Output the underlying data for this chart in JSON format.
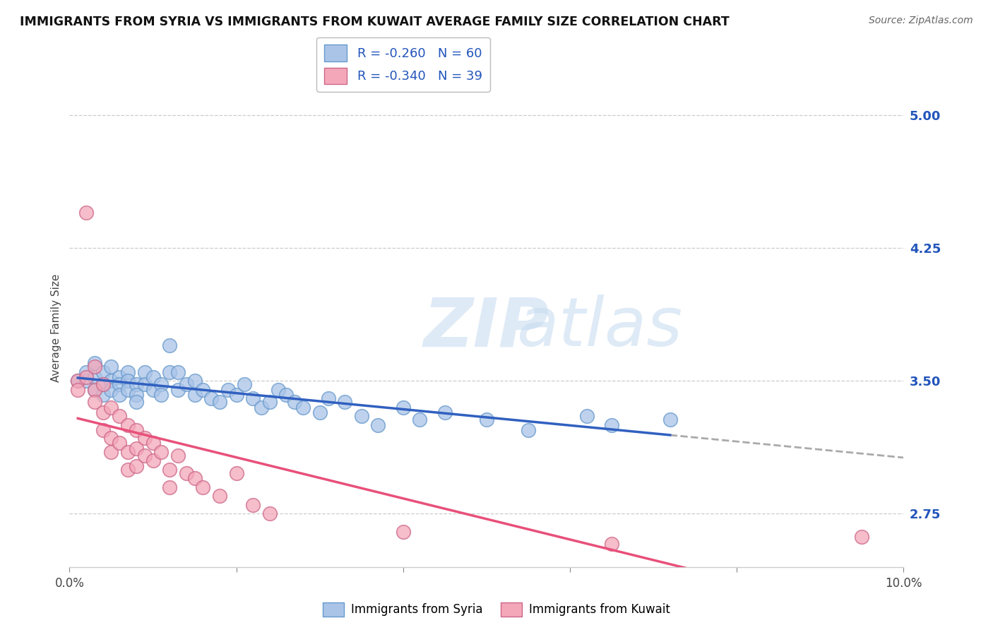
{
  "title": "IMMIGRANTS FROM SYRIA VS IMMIGRANTS FROM KUWAIT AVERAGE FAMILY SIZE CORRELATION CHART",
  "source": "Source: ZipAtlas.com",
  "ylabel": "Average Family Size",
  "xlim": [
    0.0,
    0.1
  ],
  "ylim": [
    2.45,
    5.15
  ],
  "yticks": [
    2.75,
    3.5,
    4.25,
    5.0
  ],
  "xticks": [
    0.0,
    0.02,
    0.04,
    0.06,
    0.08,
    0.1
  ],
  "xticklabels": [
    "0.0%",
    "",
    "",
    "",
    "",
    "10.0%"
  ],
  "syria_color": "#aac4e8",
  "kuwait_color": "#f4a7b9",
  "syria_R": -0.26,
  "syria_N": 60,
  "kuwait_R": -0.34,
  "kuwait_N": 39,
  "syria_line_color": "#3060c0",
  "kuwait_line_color": "#e8507a",
  "trend_text_color": "#2255bb",
  "syria_scatter": [
    [
      0.001,
      3.5
    ],
    [
      0.002,
      3.5
    ],
    [
      0.002,
      3.55
    ],
    [
      0.003,
      3.45
    ],
    [
      0.003,
      3.52
    ],
    [
      0.003,
      3.6
    ],
    [
      0.004,
      3.48
    ],
    [
      0.004,
      3.55
    ],
    [
      0.004,
      3.42
    ],
    [
      0.005,
      3.5
    ],
    [
      0.005,
      3.58
    ],
    [
      0.005,
      3.45
    ],
    [
      0.006,
      3.52
    ],
    [
      0.006,
      3.48
    ],
    [
      0.006,
      3.42
    ],
    [
      0.007,
      3.55
    ],
    [
      0.007,
      3.5
    ],
    [
      0.007,
      3.45
    ],
    [
      0.008,
      3.48
    ],
    [
      0.008,
      3.42
    ],
    [
      0.008,
      3.38
    ],
    [
      0.009,
      3.55
    ],
    [
      0.009,
      3.48
    ],
    [
      0.01,
      3.45
    ],
    [
      0.01,
      3.52
    ],
    [
      0.011,
      3.48
    ],
    [
      0.011,
      3.42
    ],
    [
      0.012,
      3.7
    ],
    [
      0.012,
      3.55
    ],
    [
      0.013,
      3.45
    ],
    [
      0.013,
      3.55
    ],
    [
      0.014,
      3.48
    ],
    [
      0.015,
      3.42
    ],
    [
      0.015,
      3.5
    ],
    [
      0.016,
      3.45
    ],
    [
      0.017,
      3.4
    ],
    [
      0.018,
      3.38
    ],
    [
      0.019,
      3.45
    ],
    [
      0.02,
      3.42
    ],
    [
      0.021,
      3.48
    ],
    [
      0.022,
      3.4
    ],
    [
      0.023,
      3.35
    ],
    [
      0.024,
      3.38
    ],
    [
      0.025,
      3.45
    ],
    [
      0.026,
      3.42
    ],
    [
      0.027,
      3.38
    ],
    [
      0.028,
      3.35
    ],
    [
      0.03,
      3.32
    ],
    [
      0.031,
      3.4
    ],
    [
      0.033,
      3.38
    ],
    [
      0.035,
      3.3
    ],
    [
      0.037,
      3.25
    ],
    [
      0.04,
      3.35
    ],
    [
      0.042,
      3.28
    ],
    [
      0.045,
      3.32
    ],
    [
      0.05,
      3.28
    ],
    [
      0.055,
      3.22
    ],
    [
      0.062,
      3.3
    ],
    [
      0.065,
      3.25
    ],
    [
      0.072,
      3.28
    ]
  ],
  "kuwait_scatter": [
    [
      0.001,
      3.5
    ],
    [
      0.001,
      3.45
    ],
    [
      0.002,
      3.52
    ],
    [
      0.002,
      4.45
    ],
    [
      0.003,
      3.45
    ],
    [
      0.003,
      3.38
    ],
    [
      0.003,
      3.58
    ],
    [
      0.004,
      3.48
    ],
    [
      0.004,
      3.32
    ],
    [
      0.004,
      3.22
    ],
    [
      0.005,
      3.35
    ],
    [
      0.005,
      3.18
    ],
    [
      0.005,
      3.1
    ],
    [
      0.006,
      3.3
    ],
    [
      0.006,
      3.15
    ],
    [
      0.007,
      3.25
    ],
    [
      0.007,
      3.1
    ],
    [
      0.007,
      3.0
    ],
    [
      0.008,
      3.22
    ],
    [
      0.008,
      3.12
    ],
    [
      0.008,
      3.02
    ],
    [
      0.009,
      3.18
    ],
    [
      0.009,
      3.08
    ],
    [
      0.01,
      3.15
    ],
    [
      0.01,
      3.05
    ],
    [
      0.011,
      3.1
    ],
    [
      0.012,
      3.0
    ],
    [
      0.012,
      2.9
    ],
    [
      0.013,
      3.08
    ],
    [
      0.014,
      2.98
    ],
    [
      0.015,
      2.95
    ],
    [
      0.016,
      2.9
    ],
    [
      0.018,
      2.85
    ],
    [
      0.02,
      2.98
    ],
    [
      0.022,
      2.8
    ],
    [
      0.024,
      2.75
    ],
    [
      0.04,
      2.65
    ],
    [
      0.065,
      2.58
    ],
    [
      0.095,
      2.62
    ]
  ]
}
